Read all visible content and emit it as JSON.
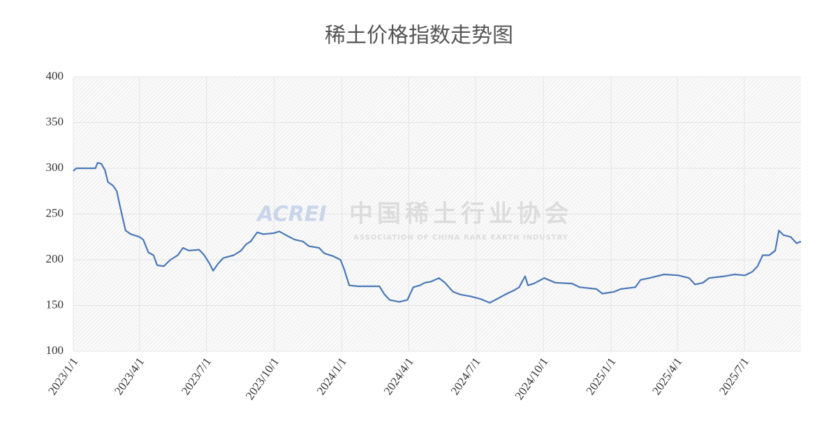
{
  "chart_data": {
    "type": "line",
    "title": "稀土价格指数走势图",
    "watermark": {
      "logo": "ACREI",
      "name": "中国稀土行业协会",
      "subtitle": "ASSOCIATION OF CHINA RARE EARTH INDUSTRY"
    },
    "x": [
      "2023/1/1",
      "2023/1/5",
      "2023/1/31",
      "2023/2/3",
      "2023/2/8",
      "2023/2/13",
      "2023/2/17",
      "2023/2/24",
      "2023/3/1",
      "2023/3/5",
      "2023/3/13",
      "2023/3/20",
      "2023/4/1",
      "2023/4/6",
      "2023/4/13",
      "2023/4/20",
      "2023/4/25",
      "2023/5/4",
      "2023/5/13",
      "2023/5/23",
      "2023/5/30",
      "2023/6/7",
      "2023/6/21",
      "2023/6/28",
      "2023/7/5",
      "2023/7/10",
      "2023/7/17",
      "2023/7/24",
      "2023/8/7",
      "2023/8/17",
      "2023/8/24",
      "2023/8/30",
      "2023/9/8",
      "2023/9/16",
      "2023/9/30",
      "2023/10/8",
      "2023/10/19",
      "2023/10/29",
      "2023/11/9",
      "2023/11/17",
      "2023/12/1",
      "2023/12/8",
      "2023/12/20",
      "2023/12/30",
      "2024/1/4",
      "2024/1/11",
      "2024/1/23",
      "2024/2/21",
      "2024/2/28",
      "2024/3/6",
      "2024/3/19",
      "2024/3/30",
      "2024/4/7",
      "2024/4/16",
      "2024/4/23",
      "2024/5/1",
      "2024/5/12",
      "2024/5/20",
      "2024/5/31",
      "2024/6/10",
      "2024/6/24",
      "2024/7/8",
      "2024/7/20",
      "2024/8/1",
      "2024/8/10",
      "2024/8/23",
      "2024/8/29",
      "2024/9/6",
      "2024/9/10",
      "2024/9/18",
      "2024/10/2",
      "2024/10/17",
      "2024/11/9",
      "2024/11/19",
      "2024/12/12",
      "2024/12/20",
      "2025/1/5",
      "2025/1/14",
      "2025/2/3",
      "2025/2/10",
      "2025/2/22",
      "2025/3/14",
      "2025/4/2",
      "2025/4/17",
      "2025/4/25",
      "2025/5/6",
      "2025/5/14",
      "2025/6/4",
      "2025/6/18",
      "2025/7/2",
      "2025/7/12",
      "2025/7/19",
      "2025/7/26",
      "2025/8/4",
      "2025/8/12",
      "2025/8/17",
      "2025/8/23",
      "2025/9/2",
      "2025/9/10",
      "2025/9/16"
    ],
    "series": [
      {
        "name": "稀土价格指数",
        "color": "#4a78b8",
        "values": [
          297,
          300,
          300,
          306,
          305,
          298,
          285,
          281,
          275,
          260,
          232,
          228,
          225,
          222,
          208,
          205,
          194,
          193,
          200,
          205,
          213,
          210,
          211,
          205,
          196,
          188,
          196,
          202,
          205,
          210,
          217,
          220,
          230,
          228,
          229,
          231,
          226,
          222,
          220,
          215,
          213,
          207,
          204,
          200,
          190,
          172,
          171,
          171,
          162,
          156,
          154,
          156,
          170,
          172,
          175,
          176,
          180,
          175,
          165,
          162,
          160,
          157,
          153,
          158,
          162,
          167,
          170,
          182,
          172,
          174,
          180,
          175,
          174,
          170,
          168,
          163,
          165,
          168,
          170,
          178,
          180,
          184,
          183,
          180,
          173,
          175,
          180,
          182,
          184,
          183,
          187,
          193,
          205,
          205,
          210,
          232,
          227,
          225,
          218,
          220
        ]
      }
    ],
    "xlim": [
      "2023/1/1",
      "2025/9/16"
    ],
    "xticks": [
      "2023/1/1",
      "2023/4/1",
      "2023/7/1",
      "2023/10/1",
      "2024/1/1",
      "2024/4/1",
      "2024/7/1",
      "2024/10/1",
      "2025/1/1",
      "2025/4/1",
      "2025/7/1"
    ],
    "ylim": [
      100,
      400
    ],
    "yticks": [
      100,
      150,
      200,
      250,
      300,
      350,
      400
    ],
    "grid": true
  }
}
